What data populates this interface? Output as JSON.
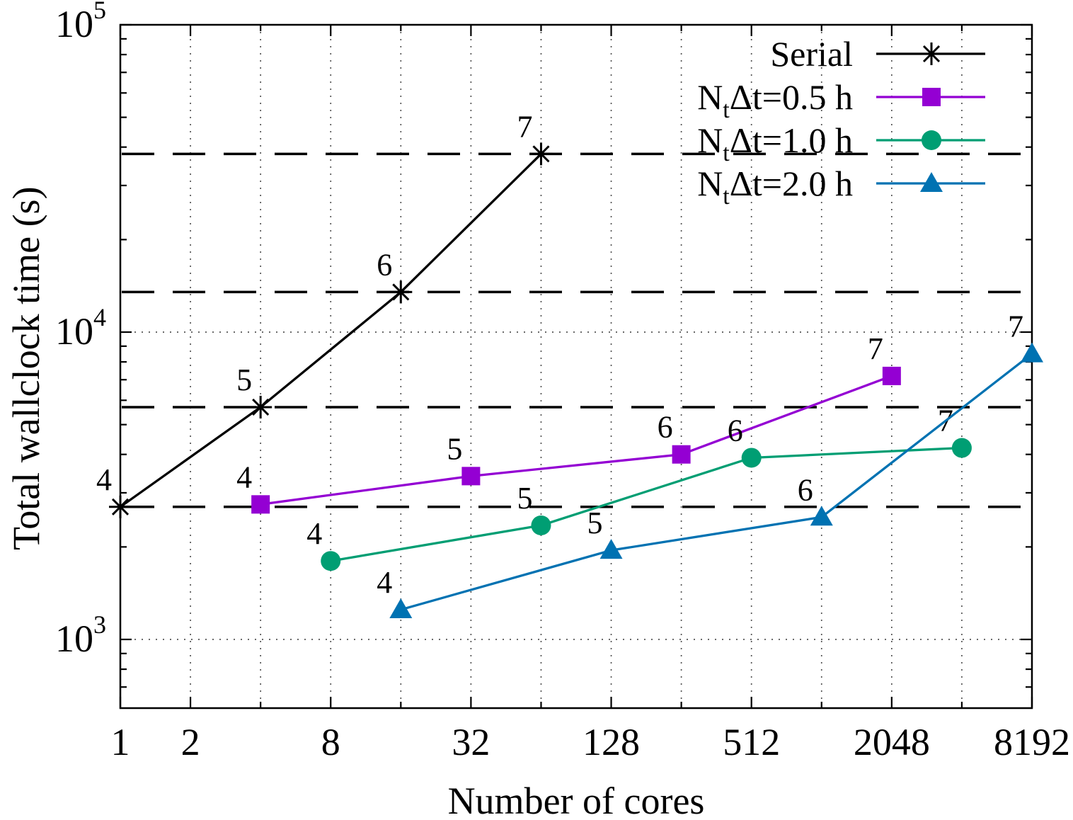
{
  "chart_data": {
    "type": "line",
    "title": "",
    "xlabel": "Number of cores",
    "ylabel": "Total wallclock time (s)",
    "x_scale": "log2",
    "y_scale": "log10",
    "xlim": [
      1,
      8192
    ],
    "ylim": [
      600,
      100000
    ],
    "grid": {
      "style": "dotted",
      "color": "#555555"
    },
    "x_major_ticks": [
      1,
      2,
      8,
      32,
      128,
      512,
      2048,
      8192
    ],
    "x_minor_ticks": [
      4,
      16,
      64,
      256,
      1024,
      4096
    ],
    "y_tick_labels": [
      {
        "base": "10",
        "exp": "3",
        "value": 1000
      },
      {
        "base": "10",
        "exp": "4",
        "value": 10000
      },
      {
        "base": "10",
        "exp": "5",
        "value": 100000
      }
    ],
    "serial_reference_lines": {
      "style": "long-dash",
      "color": "#000000",
      "values": [
        2700,
        5700,
        13500,
        38000
      ]
    },
    "legend": {
      "position": "top-right"
    },
    "series": [
      {
        "name": "Serial",
        "label_pre": "Serial",
        "label_sub": "",
        "label_post": "",
        "color": "#000000",
        "marker": "asterisk",
        "points": [
          {
            "x": 1,
            "y": 2700,
            "label": "4"
          },
          {
            "x": 4,
            "y": 5700,
            "label": "5"
          },
          {
            "x": 16,
            "y": 13500,
            "label": "6"
          },
          {
            "x": 64,
            "y": 38000,
            "label": "7"
          }
        ]
      },
      {
        "name": "NtΔt=0.5 h",
        "label_pre": "N",
        "label_sub": "t",
        "label_post": "Δt=0.5 h",
        "color": "#9400d3",
        "marker": "square",
        "points": [
          {
            "x": 4,
            "y": 2750,
            "label": "4"
          },
          {
            "x": 32,
            "y": 3400,
            "label": "5"
          },
          {
            "x": 256,
            "y": 4000,
            "label": "6"
          },
          {
            "x": 2048,
            "y": 7200,
            "label": "7"
          }
        ]
      },
      {
        "name": "NtΔt=1.0 h",
        "label_pre": "N",
        "label_sub": "t",
        "label_post": "Δt=1.0 h",
        "color": "#009e73",
        "marker": "circle",
        "points": [
          {
            "x": 8,
            "y": 1800,
            "label": "4"
          },
          {
            "x": 64,
            "y": 2350,
            "label": "5"
          },
          {
            "x": 512,
            "y": 3900,
            "label": "6"
          },
          {
            "x": 4096,
            "y": 4200,
            "label": "7"
          }
        ]
      },
      {
        "name": "NtΔt=2.0 h",
        "label_pre": "N",
        "label_sub": "t",
        "label_post": "Δt=2.0 h",
        "color": "#0072b2",
        "marker": "triangle",
        "points": [
          {
            "x": 16,
            "y": 1250,
            "label": "4"
          },
          {
            "x": 128,
            "y": 1950,
            "label": "5"
          },
          {
            "x": 1024,
            "y": 2500,
            "label": "6"
          },
          {
            "x": 8192,
            "y": 8500,
            "label": "7"
          }
        ]
      }
    ]
  }
}
